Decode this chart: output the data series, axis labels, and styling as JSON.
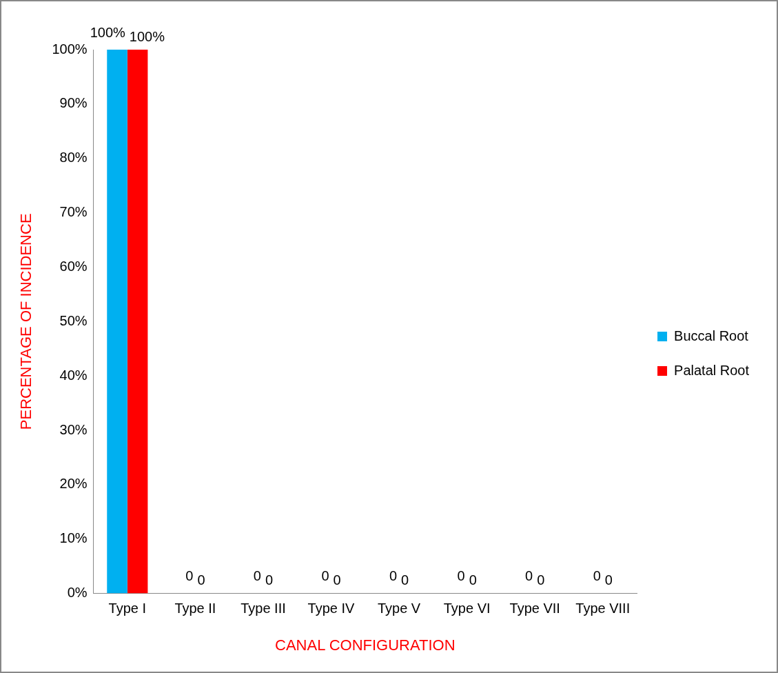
{
  "chart_data": {
    "type": "bar",
    "xlabel": "CANAL CONFIGURATION",
    "ylabel": "PERCENTAGE OF INCIDENCE",
    "categories": [
      "Type I",
      "Type II",
      "Type III",
      "Type IV",
      "Type V",
      "Type VI",
      "Type VII",
      "Type VIII"
    ],
    "series": [
      {
        "name": "Buccal Root",
        "color": "#00b0f0",
        "values": [
          100,
          0,
          0,
          0,
          0,
          0,
          0,
          0
        ],
        "value_labels": [
          "100%",
          "0",
          "0",
          "0",
          "0",
          "0",
          "0",
          "0"
        ]
      },
      {
        "name": "Palatal Root",
        "color": "#ff0000",
        "values": [
          100,
          0,
          0,
          0,
          0,
          0,
          0,
          0
        ],
        "value_labels": [
          "100%",
          "0",
          "0",
          "0",
          "0",
          "0",
          "0",
          "0"
        ]
      }
    ],
    "ylim": [
      0,
      100
    ],
    "yticks": [
      {
        "value": 0,
        "label": "0%"
      },
      {
        "value": 10,
        "label": "10%"
      },
      {
        "value": 20,
        "label": "20%"
      },
      {
        "value": 30,
        "label": "30%"
      },
      {
        "value": 40,
        "label": "40%"
      },
      {
        "value": 50,
        "label": "50%"
      },
      {
        "value": 60,
        "label": "60%"
      },
      {
        "value": 70,
        "label": "70%"
      },
      {
        "value": 80,
        "label": "80%"
      },
      {
        "value": 90,
        "label": "90%"
      },
      {
        "value": 100,
        "label": "100%"
      }
    ],
    "grid": false,
    "legend": "right"
  }
}
